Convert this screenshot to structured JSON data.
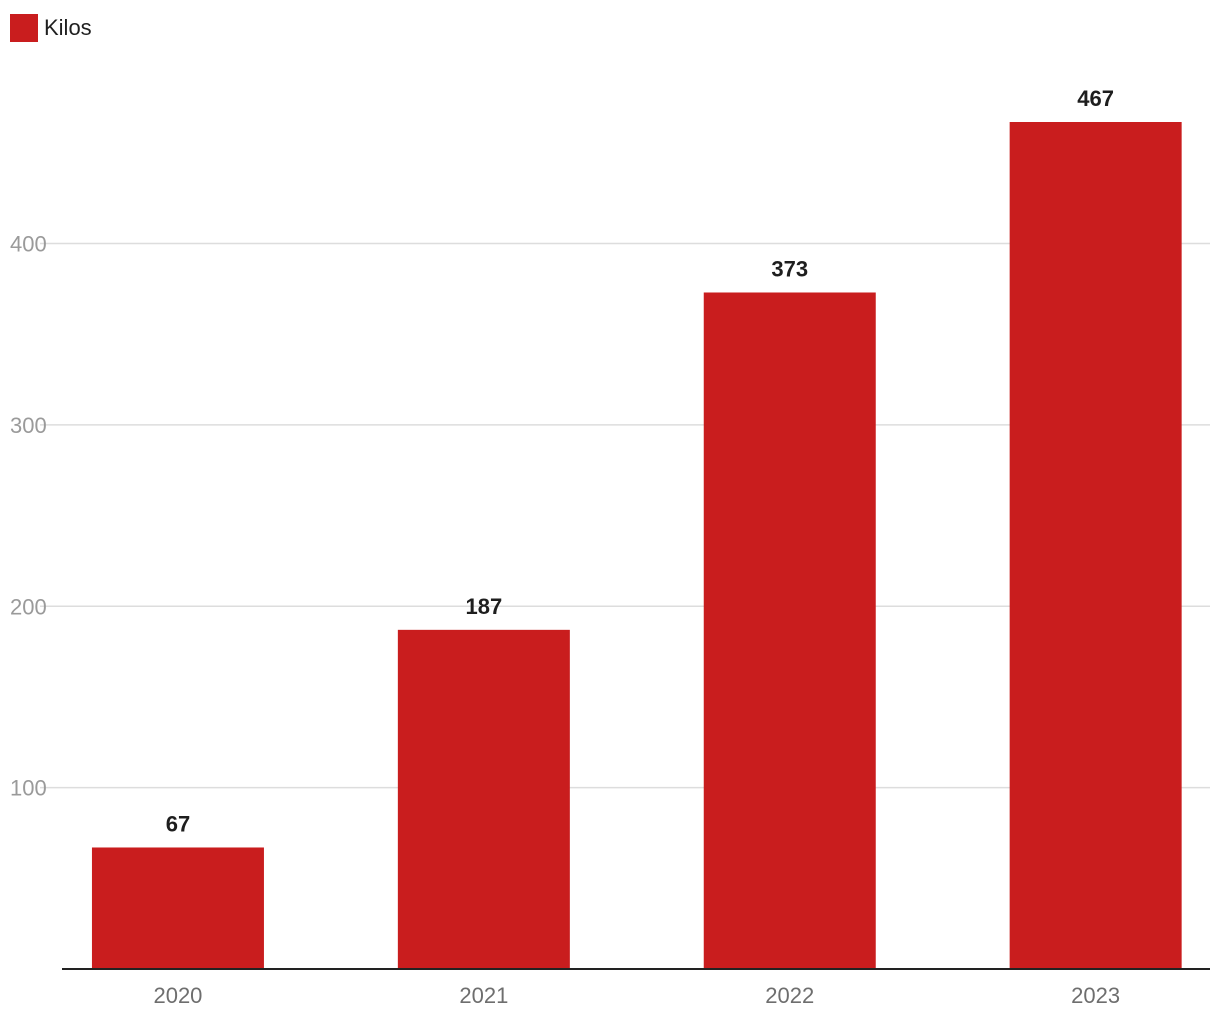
{
  "chart_data": {
    "type": "bar",
    "categories": [
      "2020",
      "2021",
      "2022",
      "2023"
    ],
    "series": [
      {
        "name": "Kilos",
        "values": [
          67,
          187,
          373,
          467
        ],
        "color": "#c91d1e"
      }
    ],
    "data_labels": [
      "67",
      "187",
      "373",
      "467"
    ],
    "yticks": [
      100,
      200,
      300,
      400
    ],
    "ytick_labels": [
      "100",
      "200",
      "300",
      "400"
    ],
    "ylim": [
      0,
      467
    ],
    "grid": true,
    "legend_position": "top-left"
  }
}
